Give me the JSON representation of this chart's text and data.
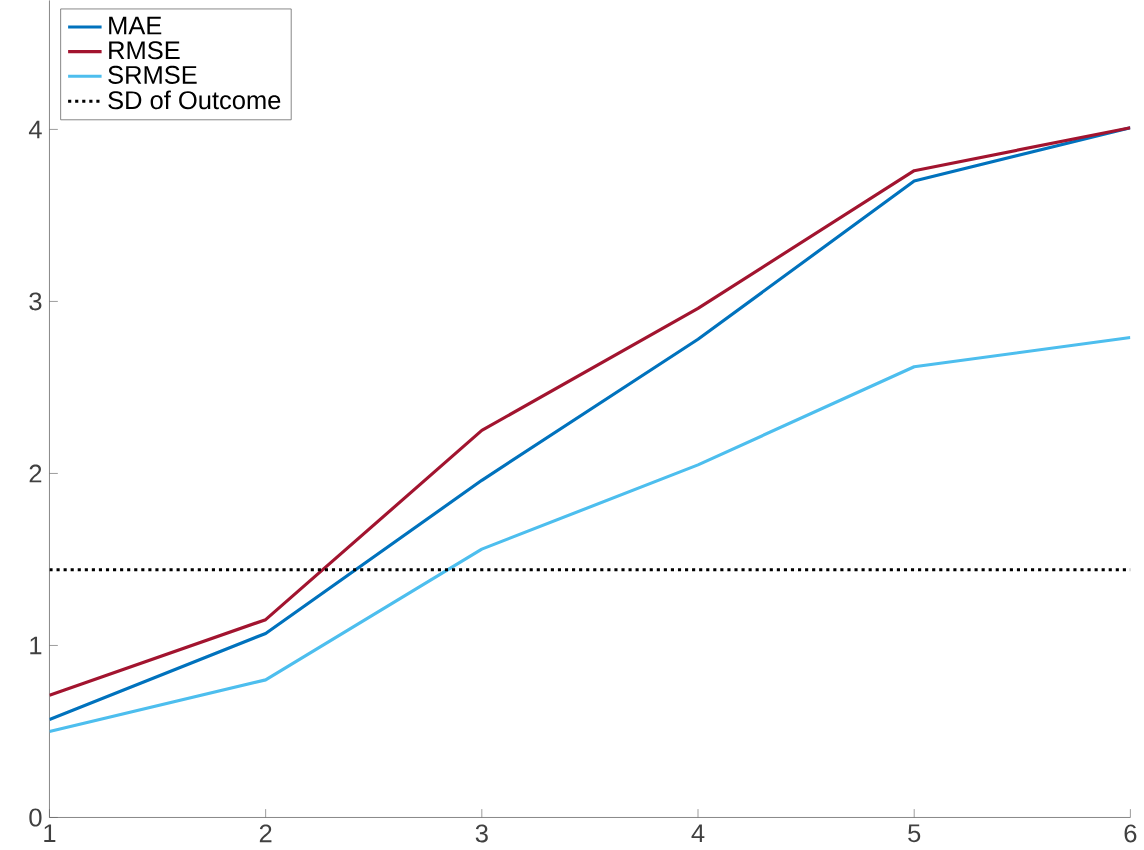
{
  "chart_data": {
    "type": "line",
    "x": [
      1,
      2,
      3,
      4,
      5,
      6
    ],
    "series": [
      {
        "name": "MAE",
        "color": "#0072bd",
        "values": [
          0.57,
          1.07,
          1.96,
          2.78,
          3.7,
          4.01
        ]
      },
      {
        "name": "RMSE",
        "color": "#a2142f",
        "values": [
          0.71,
          1.15,
          2.25,
          2.96,
          3.76,
          4.01
        ]
      },
      {
        "name": "SRMSE",
        "color": "#4dbeee",
        "values": [
          0.5,
          0.8,
          1.56,
          2.05,
          2.62,
          2.79
        ]
      }
    ],
    "ref_lines": [
      {
        "axis": "y",
        "value": 1.44,
        "label": "SD of Outcome",
        "color": "#000000",
        "line_style": "dotted"
      }
    ],
    "xlim": [
      1,
      6
    ],
    "ylim": [
      0,
      4.75
    ],
    "xticks": [
      1,
      2,
      3,
      4,
      5,
      6
    ],
    "yticks": [
      0,
      1,
      2,
      3,
      4
    ],
    "legend": "top left",
    "grid": false,
    "marker": "none",
    "line_style": "solid"
  }
}
